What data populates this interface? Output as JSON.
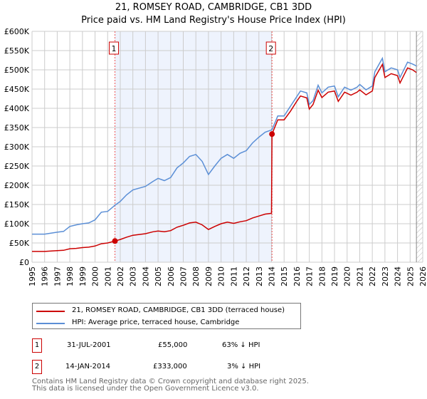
{
  "title": "21, ROMSEY ROAD, CAMBRIDGE, CB1 3DD",
  "subtitle": "Price paid vs. HM Land Registry's House Price Index (HPI)",
  "chart_data": {
    "type": "line",
    "ylim": [
      0,
      600000
    ],
    "xlim": [
      1995,
      2026
    ],
    "yticks": [
      0,
      50000,
      100000,
      150000,
      200000,
      250000,
      300000,
      350000,
      400000,
      450000,
      500000,
      550000,
      600000
    ],
    "ytick_labels": [
      "£0",
      "£50K",
      "£100K",
      "£150K",
      "£200K",
      "£250K",
      "£300K",
      "£350K",
      "£400K",
      "£450K",
      "£500K",
      "£550K",
      "£600K"
    ],
    "xticks": [
      1995,
      1996,
      1997,
      1998,
      1999,
      2000,
      2001,
      2002,
      2003,
      2004,
      2005,
      2006,
      2007,
      2008,
      2009,
      2010,
      2011,
      2012,
      2013,
      2014,
      2015,
      2016,
      2017,
      2018,
      2019,
      2020,
      2021,
      2022,
      2023,
      2024,
      2025,
      2026
    ],
    "grid": true,
    "shaded_range": [
      2001.58,
      2014.04
    ],
    "hatched_from": 2025.5,
    "series": [
      {
        "name": "21, ROMSEY ROAD, CAMBRIDGE, CB1 3DD (terraced house)",
        "color": "#cc0000",
        "x": [
          1995,
          1996,
          1997,
          1997.5,
          1998,
          1998.5,
          1999,
          1999.5,
          2000,
          2000.5,
          2001,
          2001.58,
          2002,
          2002.5,
          2003,
          2004,
          2004.6,
          2005,
          2005.5,
          2006,
          2006.5,
          2007,
          2007.5,
          2008,
          2008.5,
          2009,
          2009.5,
          2010,
          2010.5,
          2011,
          2011.5,
          2012,
          2012.5,
          2013,
          2013.5,
          2014.0,
          2014.04,
          2014.5,
          2015,
          2015.5,
          2016,
          2016.3,
          2016.8,
          2017,
          2017.3,
          2017.7,
          2018,
          2018.5,
          2019,
          2019.3,
          2019.8,
          2020.3,
          2020.8,
          2021,
          2021.5,
          2022,
          2022.2,
          2022.8,
          2023,
          2023.5,
          2024,
          2024.2,
          2024.8,
          2025.2,
          2025.5
        ],
        "y": [
          28000,
          28000,
          30000,
          31000,
          35000,
          36000,
          38000,
          39000,
          42000,
          48000,
          50000,
          55000,
          59000,
          65000,
          70000,
          74000,
          79000,
          81000,
          79000,
          82000,
          91000,
          96000,
          102000,
          104000,
          97000,
          85000,
          93000,
          100000,
          104000,
          101000,
          105000,
          108000,
          115000,
          120000,
          125000,
          127000,
          333000,
          370000,
          370000,
          392000,
          418000,
          432000,
          427000,
          398000,
          410000,
          447000,
          428000,
          442000,
          445000,
          418000,
          442000,
          434000,
          442000,
          448000,
          435000,
          445000,
          480000,
          514000,
          480000,
          490000,
          485000,
          466000,
          505000,
          500000,
          493000
        ]
      },
      {
        "name": "HPI: Average price, terraced house, Cambridge",
        "color": "#5b8fd6",
        "x": [
          1995,
          1996,
          1997,
          1997.5,
          1998,
          1998.5,
          1999,
          1999.5,
          2000,
          2000.5,
          2001,
          2001.58,
          2002,
          2002.5,
          2003,
          2004,
          2004.6,
          2005,
          2005.5,
          2006,
          2006.5,
          2007,
          2007.5,
          2008,
          2008.5,
          2009,
          2009.5,
          2010,
          2010.5,
          2011,
          2011.5,
          2012,
          2012.5,
          2013,
          2013.5,
          2014.04,
          2014.5,
          2015,
          2015.5,
          2016,
          2016.3,
          2016.8,
          2017,
          2017.3,
          2017.7,
          2018,
          2018.5,
          2019,
          2019.3,
          2019.8,
          2020.3,
          2020.8,
          2021,
          2021.5,
          2022,
          2022.2,
          2022.8,
          2023,
          2023.5,
          2024,
          2024.2,
          2024.8,
          2025.2,
          2025.5
        ],
        "y": [
          73000,
          73000,
          78000,
          80000,
          93000,
          97000,
          100000,
          102000,
          110000,
          130000,
          132000,
          148000,
          158000,
          175000,
          188000,
          197000,
          210000,
          218000,
          212000,
          220000,
          245000,
          258000,
          275000,
          280000,
          262000,
          228000,
          250000,
          270000,
          280000,
          270000,
          283000,
          290000,
          310000,
          325000,
          338000,
          344000,
          380000,
          380000,
          405000,
          430000,
          445000,
          440000,
          410000,
          420000,
          460000,
          440000,
          455000,
          458000,
          430000,
          455000,
          447000,
          455000,
          462000,
          448000,
          458000,
          495000,
          530000,
          495000,
          505000,
          500000,
          480000,
          520000,
          515000,
          510000
        ]
      }
    ],
    "sales": [
      {
        "label": "1",
        "x": 2001.58,
        "y": 55000
      },
      {
        "label": "2",
        "x": 2014.04,
        "y": 333000
      }
    ]
  },
  "legend": {
    "items": [
      "21, ROMSEY ROAD, CAMBRIDGE, CB1 3DD (terraced house)",
      "HPI: Average price, terraced house, Cambridge"
    ]
  },
  "table": [
    {
      "num": "1",
      "date": "31-JUL-2001",
      "price": "£55,000",
      "hpi": "63% ↓ HPI"
    },
    {
      "num": "2",
      "date": "14-JAN-2014",
      "price": "£333,000",
      "hpi": "3% ↓ HPI"
    }
  ],
  "footer": [
    "Contains HM Land Registry data © Crown copyright and database right 2025.",
    "This data is licensed under the Open Government Licence v3.0."
  ]
}
